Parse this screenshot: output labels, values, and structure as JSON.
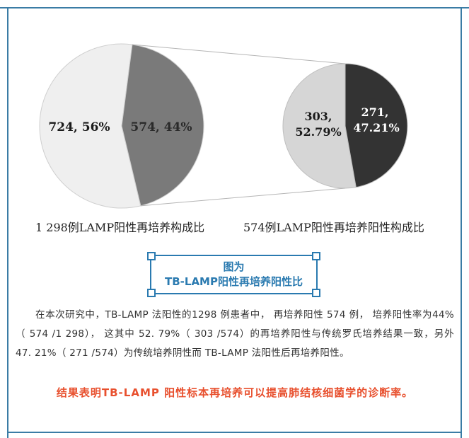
{
  "chart_data": [
    {
      "type": "pie",
      "caption": "1 298例LAMP阳性再培养构成比",
      "slices": [
        {
          "label": "724, 56%",
          "value": 724,
          "percent": 56,
          "color": "#efefef",
          "text_color": "#1a1a1a"
        },
        {
          "label": "574, 44%",
          "value": 574,
          "percent": 44,
          "color": "#7a7a7a",
          "text_color": "#2a2a2a"
        }
      ]
    },
    {
      "type": "pie",
      "caption": "574例LAMP阳性再培养阳性构成比",
      "slices": [
        {
          "label_line1": "303,",
          "label_line2": "52.79%",
          "value": 303,
          "percent": 52.79,
          "color": "#d6d6d6",
          "text_color": "#1a1a1a"
        },
        {
          "label_line1": "271,",
          "label_line2": "47.21%",
          "value": 271,
          "percent": 47.21,
          "color": "#333333",
          "text_color": "#ffffff"
        }
      ]
    }
  ],
  "title": {
    "line1": "图为",
    "line2": "TB-LAMP阳性再培养阳性比"
  },
  "body": "在本次研究中，TB-LAMP 法阳性的1298 例患者中， 再培养阳性 574 例， 培养阳性率为44%（ 574 /1 298）， 这其中 52. 79%（ 303 /574）的再培养阳性与传统罗氏培养结果一致，另外 47. 21%（ 271 /574）为传统培养阴性而 TB-LAMP 法阳性后再培养阳性。",
  "conclusion": "结果表明TB-LAMP 阳性标本再培养可以提高肺结核细菌学的诊断率。",
  "colors": {
    "frame": "#3a7ca5",
    "title": "#2a7ab0",
    "conclusion": "#e8502e"
  }
}
